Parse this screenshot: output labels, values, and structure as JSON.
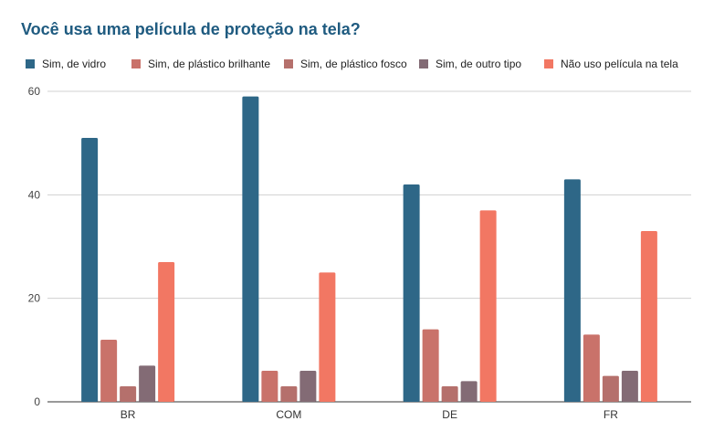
{
  "chart_data": {
    "type": "bar",
    "title": "Você usa uma película de proteção na tela?",
    "xlabel": "",
    "ylabel": "",
    "ylim": [
      0,
      60
    ],
    "yticks": [
      0,
      20,
      40,
      60
    ],
    "grid": true,
    "legend_position": "top",
    "categories": [
      "BR",
      "COM",
      "DE",
      "FR"
    ],
    "series": [
      {
        "name": "Sim, de vidro",
        "color": "#2e6787",
        "values": [
          51,
          59,
          42,
          43
        ]
      },
      {
        "name": "Sim, de plástico brilhante",
        "color": "#c9726a",
        "values": [
          12,
          6,
          14,
          13
        ]
      },
      {
        "name": "Sim, de plástico fosco",
        "color": "#b5706c",
        "values": [
          3,
          3,
          3,
          5
        ]
      },
      {
        "name": "Sim, de outro tipo",
        "color": "#836b75",
        "values": [
          7,
          6,
          4,
          6
        ]
      },
      {
        "name": "Não uso película na tela",
        "color": "#f27763",
        "values": [
          27,
          25,
          37,
          33
        ]
      }
    ]
  }
}
